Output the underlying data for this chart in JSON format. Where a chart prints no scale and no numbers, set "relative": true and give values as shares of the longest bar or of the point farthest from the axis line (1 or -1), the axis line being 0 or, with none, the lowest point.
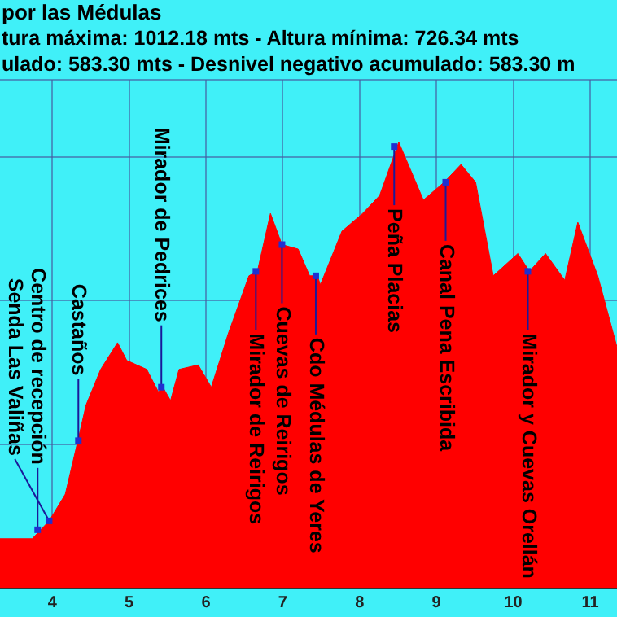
{
  "chart_data": {
    "type": "area",
    "title": "por las Médulas",
    "subtitle": "tura máxima: 1012.18 mts - Altura mínima: 726.34 mts\nulado: 583.30 mts - Desnivel negativo acumulado: 583.30 m",
    "relative": true,
    "color": "#ff0000",
    "grid": true,
    "legend": false,
    "xlim": [
      3.32,
      11.35
    ],
    "xticks": [
      4,
      5,
      6,
      7,
      8,
      9,
      10,
      11
    ],
    "x": [
      3.32,
      3.74,
      3.96,
      4.17,
      4.32,
      4.44,
      4.63,
      4.85,
      4.97,
      5.23,
      5.38,
      5.44,
      5.54,
      5.65,
      5.9,
      6.07,
      6.29,
      6.56,
      6.67,
      6.84,
      6.99,
      7.2,
      7.35,
      7.45,
      7.49,
      7.77,
      8.04,
      8.26,
      8.51,
      8.83,
      9.1,
      9.32,
      9.51,
      9.74,
      10.06,
      10.21,
      10.42,
      10.67,
      10.84,
      11.1,
      11.35
    ],
    "values": [
      0.11,
      0.11,
      0.15,
      0.21,
      0.32,
      0.41,
      0.49,
      0.55,
      0.51,
      0.49,
      0.44,
      0.45,
      0.42,
      0.49,
      0.5,
      0.45,
      0.57,
      0.7,
      0.71,
      0.84,
      0.77,
      0.76,
      0.7,
      0.7,
      0.68,
      0.8,
      0.84,
      0.88,
      1,
      0.87,
      0.91,
      0.95,
      0.91,
      0.7,
      0.75,
      0.71,
      0.75,
      0.69,
      0.82,
      0.7,
      0.54
    ],
    "annotations": [
      {
        "text": "Senda Las Valiñas",
        "x": 3.96,
        "y": 0.15
      },
      {
        "text": "Centro de recepción",
        "x": 3.81,
        "y": 0.13
      },
      {
        "text": "Castaños",
        "x": 4.34,
        "y": 0.33
      },
      {
        "text": "Mirador de Pedrices",
        "x": 5.42,
        "y": 0.45
      },
      {
        "text": "Mirador de Reirigos",
        "x": 6.65,
        "y": 0.71
      },
      {
        "text": "Cuevas de Reirigos",
        "x": 6.99,
        "y": 0.77
      },
      {
        "text": "Cdo Médulas de Yeres",
        "x": 7.43,
        "y": 0.7
      },
      {
        "text": "Peña Placias",
        "x": 8.45,
        "y": 0.99
      },
      {
        "text": "Canal Pena Escribida",
        "x": 9.12,
        "y": 0.91
      },
      {
        "text": "Mirador y Cuevas Orellán",
        "x": 10.19,
        "y": 0.71
      }
    ]
  }
}
